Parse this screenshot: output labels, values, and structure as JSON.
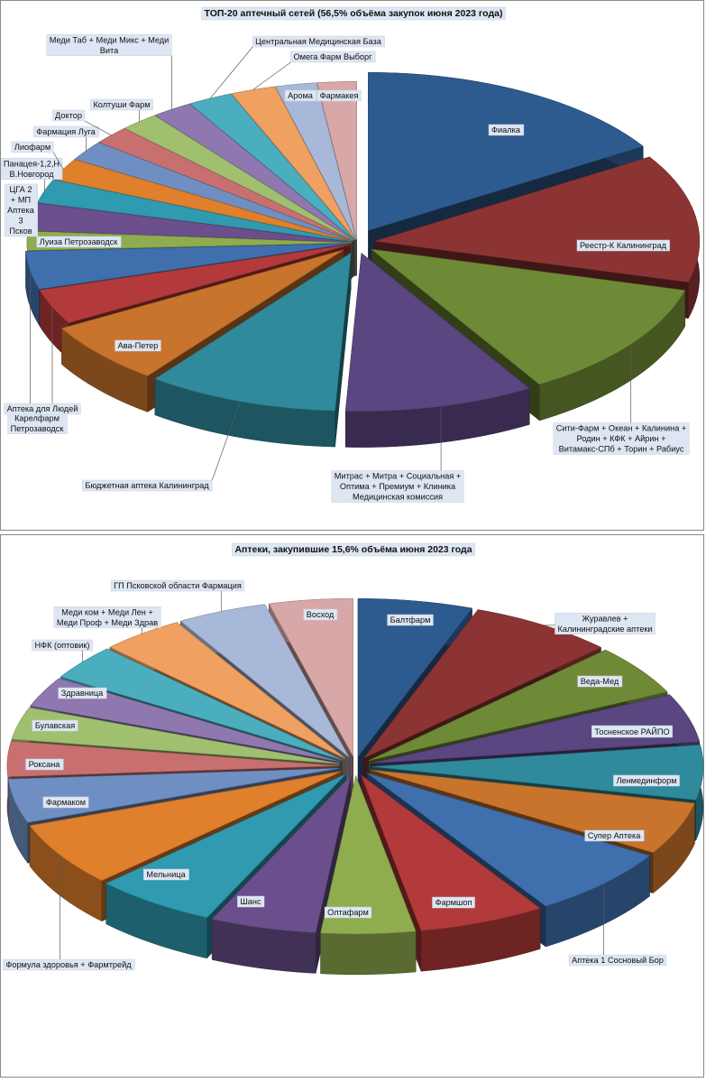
{
  "chart_data": [
    {
      "type": "pie",
      "title": "ТОП-20 аптечный сетей (56,5% объёма закупок июня 2023 года)",
      "labels": [
        "Фиалка",
        "Реестр-К Калининград",
        "Сити-Фарм + Океан + Калинина + Родин + КФК + Айрин + Витамакс-СПб + Торин + Рабиус",
        "Митрас + Митра + Социальная + Оптима + Премиум + Клиника Медицинская комиссия",
        "Бюджетная аптека Калининград",
        "Ава-Петер",
        "Карелфарм Петрозаводск",
        "Аптека для Людей",
        "Луиза Петрозаводск",
        "ЦГА 2 + МП Аптека 3 Псков",
        "Панацея-1,2,Н В.Новгород",
        "Лиофарм",
        "Фармация Луга",
        "Доктор",
        "Колтуши Фарм",
        "Меди Таб + Меди Микс + Меди Вита",
        "Центральная Медицинская База",
        "Омега Фарм Выборг",
        "Арома",
        "Фармакея"
      ],
      "values": [
        16.5,
        13.5,
        12.5,
        9.7,
        9.8,
        6.6,
        3.7,
        4.0,
        2.0,
        2.9,
        2.5,
        2.3,
        2.1,
        1.9,
        2.0,
        2.1,
        2.3,
        2.3,
        2.1,
        2.0
      ],
      "colors": [
        "#2e5b8f",
        "#8c3434",
        "#6f8a36",
        "#5a4680",
        "#2f8a9c",
        "#c8742c",
        "#b33a3a",
        "#3f6fad",
        "#8fad4f",
        "#6b4f8c",
        "#2f9ab0",
        "#e07f2c",
        "#6f8fc2",
        "#c87070",
        "#a0c070",
        "#8f78b0",
        "#4aaebf",
        "#f0a060",
        "#a8b8d8",
        "#d8a8a8"
      ]
    },
    {
      "type": "pie",
      "title": "Аптеки, закупившие 15,6% объёма июня 2023 года",
      "labels": [
        "Балтфарм",
        "Журавлев + Калининградские аптеки",
        "Веда-Мед",
        "Тосненское РАЙПО",
        "Ленмединформ",
        "Супер Аптека",
        "Аптека 1 Сосновый Бор",
        "Фармшоп",
        "Олтафарм",
        "Шанс",
        "Мельница",
        "Формула здоровья + Фармтрейд",
        "Фармаком",
        "Роксана",
        "Булавская",
        "Здравница",
        "НФК (оптовик)",
        "Меди ком + Меди Лен + Меди Проф + Меди Здрав",
        "ГП Псковской области Фармация",
        "Восход"
      ],
      "values": [
        5.6,
        7.1,
        5.2,
        5.0,
        5.6,
        5.4,
        7.2,
        6.2,
        4.6,
        5.2,
        6.0,
        6.6,
        4.5,
        3.6,
        3.3,
        3.1,
        3.6,
        4.1,
        4.4,
        4.1
      ],
      "colors": [
        "#2e5b8f",
        "#8c3434",
        "#6f8a36",
        "#5a4680",
        "#2f8a9c",
        "#c8742c",
        "#3f6fad",
        "#b33a3a",
        "#8fad4f",
        "#6b4f8c",
        "#2f9ab0",
        "#e07f2c",
        "#6f8fc2",
        "#c87070",
        "#a0c070",
        "#8f78b0",
        "#4aaebf",
        "#f0a060",
        "#a8b8d8",
        "#d8a8a8"
      ]
    }
  ]
}
